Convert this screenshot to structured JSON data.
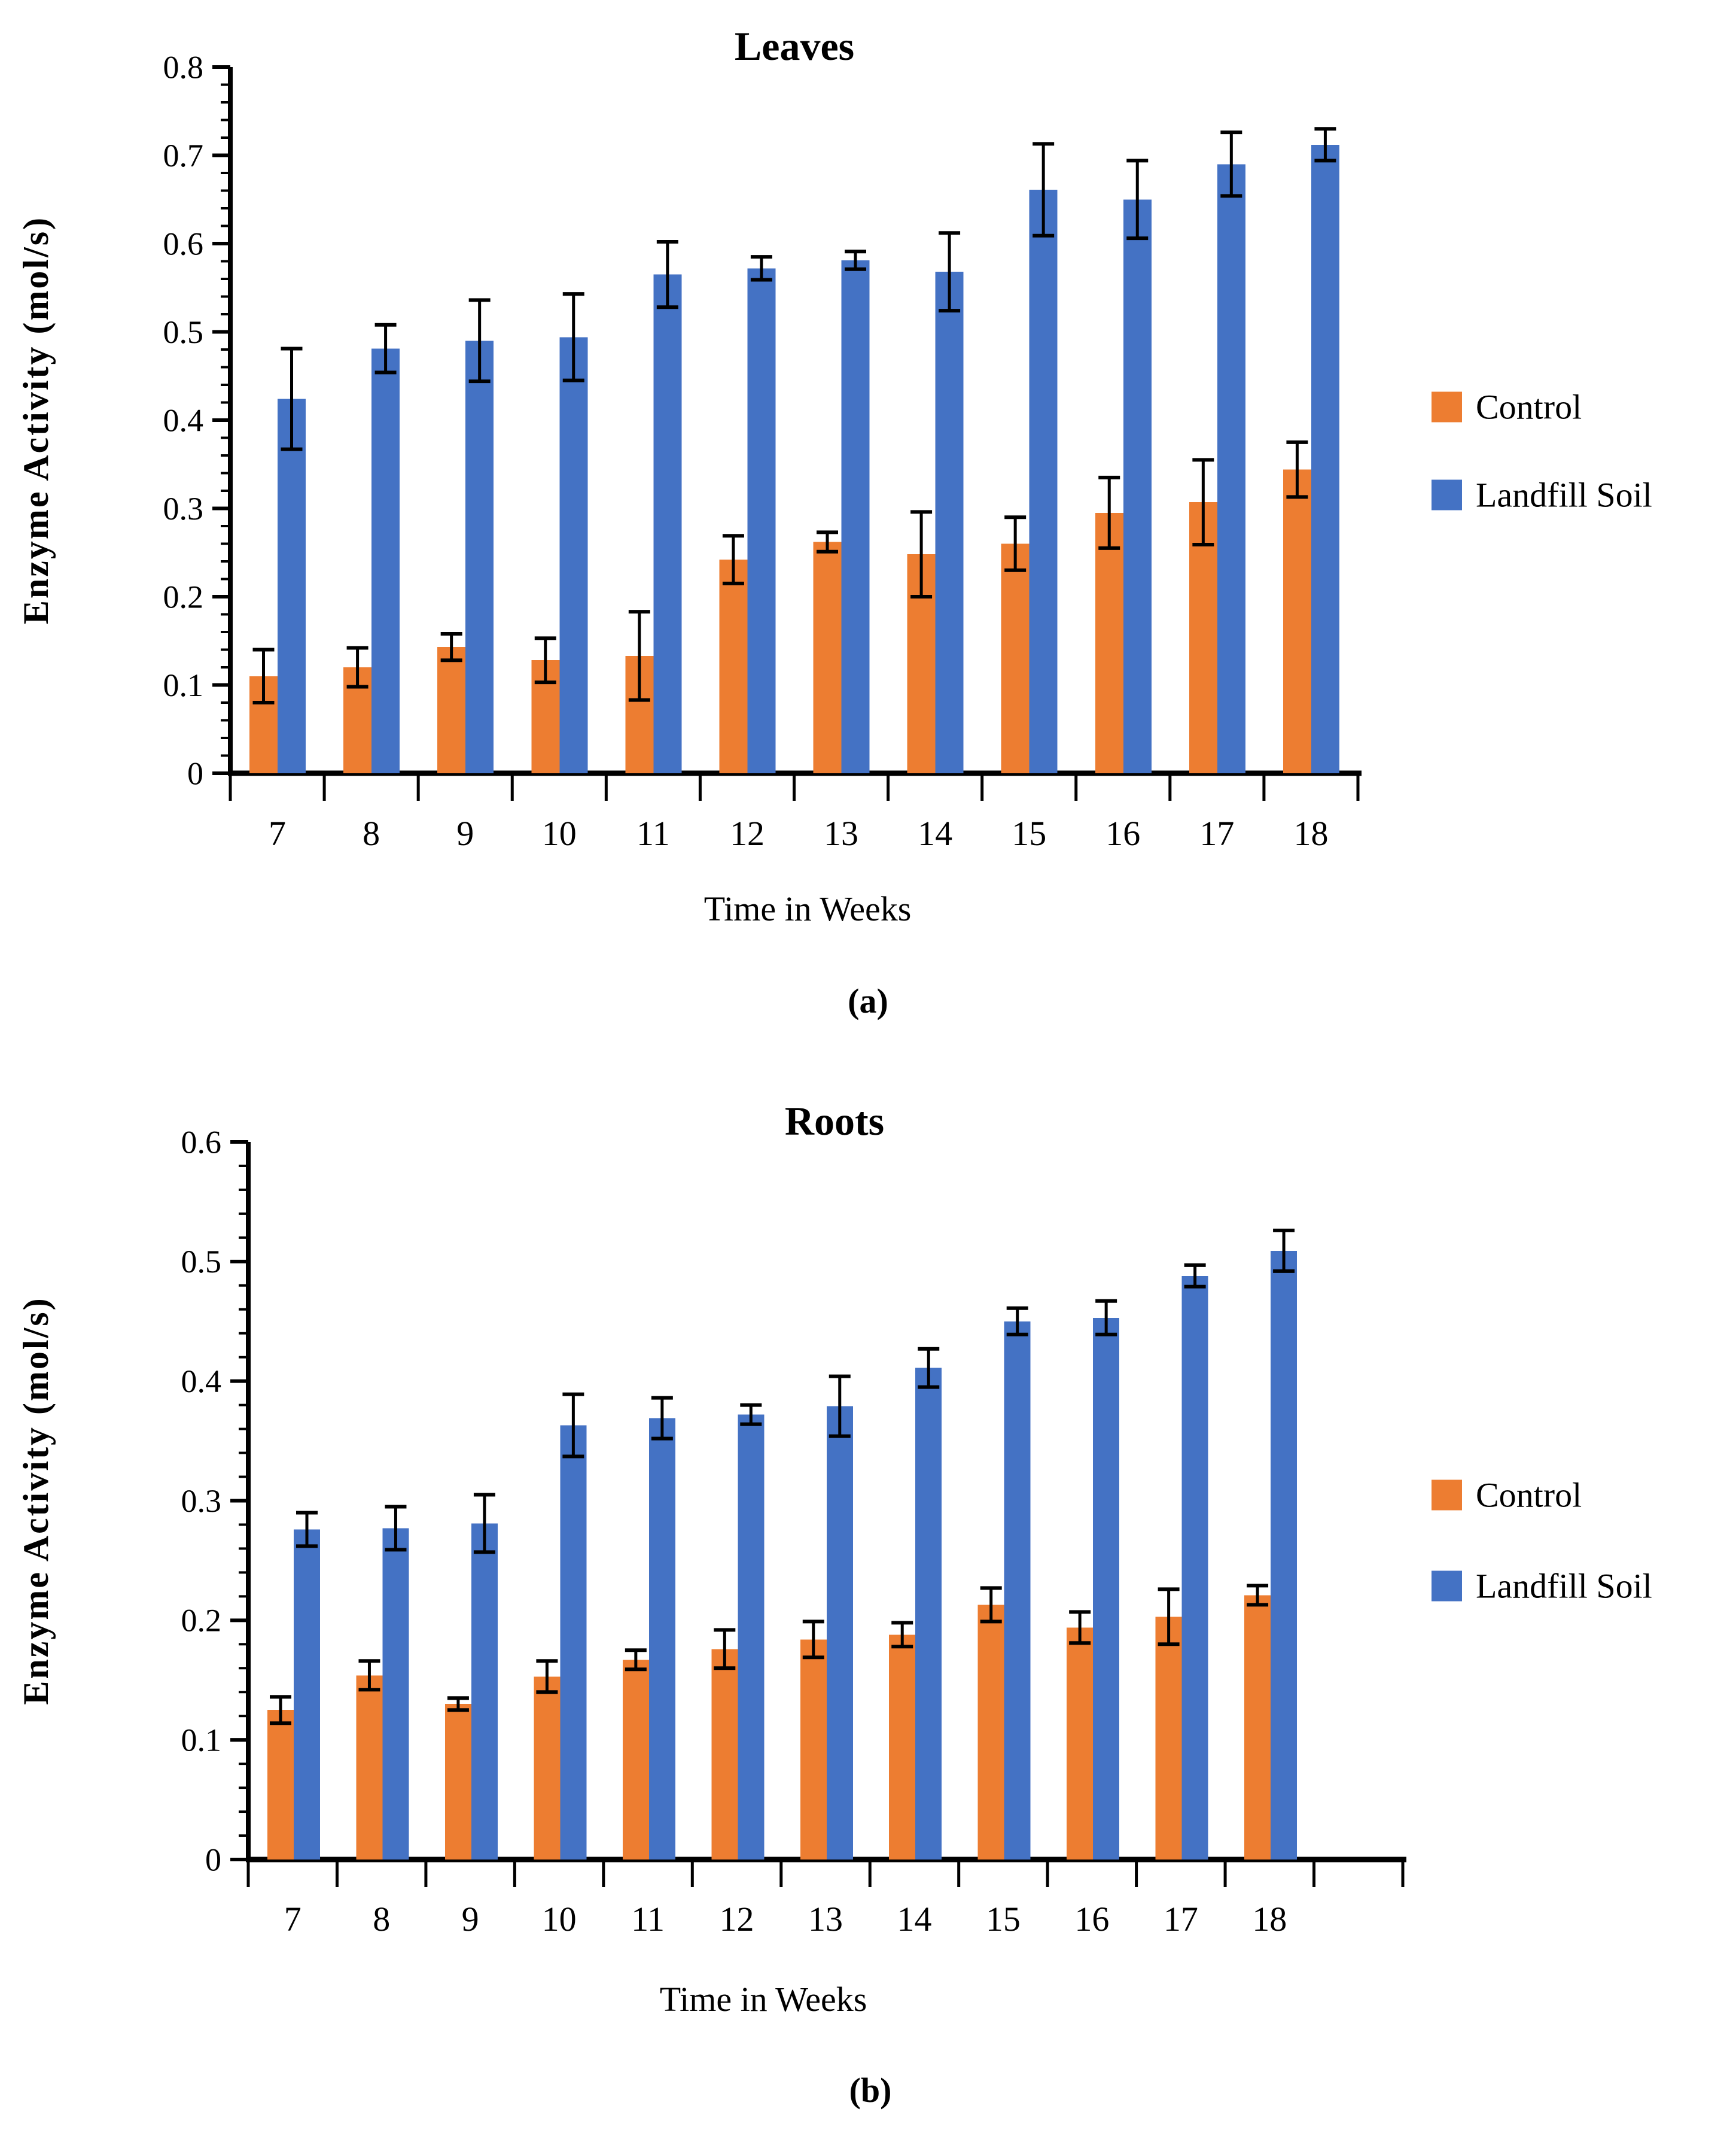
{
  "figure": {
    "description": "Two-panel grouped bar chart of enzyme activity in plant leaves and roots over time, comparing control vs landfill soil",
    "panel_captions": [
      "(a)",
      "(b)"
    ]
  },
  "colors": {
    "control": "#ED7D31",
    "landfill_soil": "#4472C4",
    "axis": "#000000",
    "error_bar": "#000000",
    "text": "#000000",
    "background": "#ffffff"
  },
  "legend": {
    "items": [
      {
        "label": "Control",
        "color": "#ED7D31"
      },
      {
        "label": "Landfill Soil",
        "color": "#4472C4"
      }
    ],
    "position": "right"
  },
  "chart_data": [
    {
      "type": "bar",
      "title": "Leaves",
      "caption": "(a)",
      "xlabel": "Time in Weeks",
      "ylabel": "Enzyme Activity (mol/s)",
      "categories": [
        "7",
        "8",
        "9",
        "10",
        "11",
        "12",
        "13",
        "14",
        "15",
        "16",
        "17",
        "18"
      ],
      "ylim": [
        0,
        0.8
      ],
      "ytick_step": 0.1,
      "yminor_step": 0.02,
      "grid": false,
      "legend_position": "right",
      "extra_right_slots": 0,
      "series": [
        {
          "name": "Control",
          "color": "#ED7D31",
          "values": [
            0.11,
            0.12,
            0.143,
            0.128,
            0.133,
            0.242,
            0.262,
            0.248,
            0.26,
            0.295,
            0.307,
            0.344
          ],
          "errors": [
            0.03,
            0.022,
            0.015,
            0.025,
            0.05,
            0.027,
            0.011,
            0.048,
            0.03,
            0.04,
            0.048,
            0.031
          ]
        },
        {
          "name": "Landfill Soil",
          "color": "#4472C4",
          "values": [
            0.424,
            0.481,
            0.49,
            0.494,
            0.565,
            0.572,
            0.581,
            0.568,
            0.661,
            0.65,
            0.69,
            0.712
          ],
          "errors": [
            0.057,
            0.027,
            0.046,
            0.049,
            0.037,
            0.013,
            0.01,
            0.044,
            0.052,
            0.044,
            0.036,
            0.018
          ]
        }
      ]
    },
    {
      "type": "bar",
      "title": "Roots",
      "caption": "(b)",
      "xlabel": "Time in Weeks",
      "ylabel": "Enzyme Activity (mol/s)",
      "categories": [
        "7",
        "8",
        "9",
        "10",
        "11",
        "12",
        "13",
        "14",
        "15",
        "16",
        "17",
        "18"
      ],
      "ylim": [
        0,
        0.6
      ],
      "ytick_step": 0.1,
      "yminor_step": 0.02,
      "grid": false,
      "legend_position": "right",
      "extra_right_slots": 1,
      "series": [
        {
          "name": "Control",
          "color": "#ED7D31",
          "values": [
            0.125,
            0.154,
            0.13,
            0.153,
            0.167,
            0.176,
            0.184,
            0.188,
            0.213,
            0.194,
            0.203,
            0.221
          ],
          "errors": [
            0.011,
            0.012,
            0.005,
            0.013,
            0.008,
            0.016,
            0.015,
            0.01,
            0.014,
            0.013,
            0.023,
            0.008
          ]
        },
        {
          "name": "Landfill Soil",
          "color": "#4472C4",
          "values": [
            0.276,
            0.277,
            0.281,
            0.363,
            0.369,
            0.372,
            0.379,
            0.411,
            0.45,
            0.453,
            0.488,
            0.509
          ],
          "errors": [
            0.014,
            0.018,
            0.024,
            0.026,
            0.017,
            0.008,
            0.025,
            0.016,
            0.011,
            0.014,
            0.009,
            0.017
          ]
        }
      ]
    }
  ]
}
